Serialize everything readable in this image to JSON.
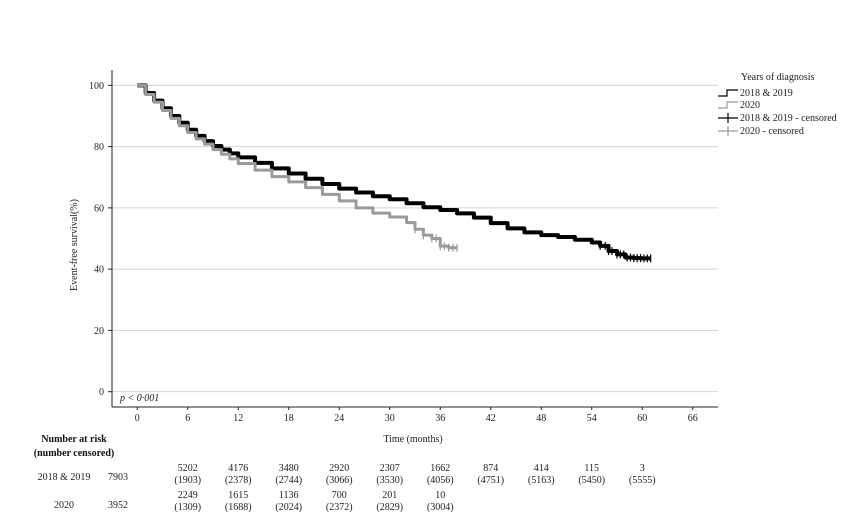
{
  "chart_data": {
    "type": "line",
    "title": "",
    "xlabel": "Time (months)",
    "ylabel": "Event-free survival(%)",
    "xlim": [
      -3,
      69
    ],
    "ylim": [
      -5,
      105
    ],
    "x_ticks": [
      0,
      6,
      12,
      18,
      24,
      30,
      36,
      42,
      48,
      54,
      60,
      66
    ],
    "y_ticks": [
      0,
      20,
      40,
      60,
      80,
      100
    ],
    "grid": "horizontal",
    "legend_placement": "top-right",
    "legend_title": "Years of diagnosis",
    "legend_entries": [
      "2018 & 2019",
      "2020",
      "2018 & 2019 - censored",
      "2020 - censored"
    ],
    "annotation": "p < 0·001",
    "colors": {
      "s2018": "#000000",
      "s2020": "#9a9a9a",
      "grid": "#d4d4d4",
      "axis": "#222222"
    },
    "series": [
      {
        "name": "2018 & 2019",
        "x": [
          0,
          1,
          2,
          3,
          4,
          5,
          6,
          7,
          8,
          9,
          10,
          11,
          12,
          14,
          16,
          18,
          20,
          22,
          24,
          26,
          28,
          30,
          32,
          34,
          36,
          38,
          40,
          42,
          44,
          46,
          48,
          50,
          52,
          54,
          55,
          56,
          57,
          58,
          59,
          60,
          61
        ],
        "y": [
          100,
          97.5,
          95,
          92.5,
          90,
          87.8,
          85.5,
          83.5,
          81.8,
          80.2,
          79,
          77.8,
          76.5,
          74.7,
          72.9,
          71.2,
          69.5,
          67.8,
          66.3,
          65,
          63.8,
          62.8,
          61.5,
          60.2,
          59.3,
          58.2,
          56.8,
          55,
          53.3,
          52,
          51.1,
          50.5,
          49.6,
          48.7,
          47.6,
          45.9,
          44.8,
          43.8,
          43.6,
          43.5,
          43.5
        ],
        "censored_x": [
          55,
          55.6,
          56,
          56.4,
          57,
          57.4,
          57.8,
          58.2,
          58.6,
          59,
          59.4,
          59.8,
          60.2,
          60.6,
          61
        ]
      },
      {
        "name": "2020",
        "x": [
          0,
          1,
          2,
          3,
          4,
          5,
          6,
          7,
          8,
          9,
          10,
          11,
          12,
          14,
          16,
          18,
          20,
          22,
          24,
          26,
          28,
          30,
          32,
          33,
          34,
          35,
          36,
          37,
          38
        ],
        "y": [
          100,
          97,
          94.5,
          91.8,
          89.2,
          86.8,
          84.6,
          82.5,
          80.8,
          79,
          77.5,
          76,
          74.5,
          72.3,
          70.2,
          68.5,
          66.6,
          64.4,
          62.3,
          60,
          58.3,
          57,
          55.2,
          53,
          51.1,
          50,
          47.5,
          47,
          47
        ],
        "censored_x": [
          33,
          34,
          35,
          35.5,
          36,
          36.5,
          37,
          37.5,
          38
        ]
      }
    ],
    "risk_table": {
      "heading_line1": "Number at risk",
      "heading_line2": "(number censored)",
      "rows": [
        {
          "label": "2018 & 2019",
          "at_risk": [
            "7903",
            "5202",
            "4176",
            "3480",
            "2920",
            "2307",
            "1662",
            "874",
            "414",
            "115",
            "3"
          ],
          "censored": [
            "",
            "(1903)",
            "(2378)",
            "(2744)",
            "(3066)",
            "(3530)",
            "(4056)",
            "(4751)",
            "(5163)",
            "(5450)",
            "(5555)"
          ]
        },
        {
          "label": "2020",
          "at_risk": [
            "3952",
            "2249",
            "1615",
            "1136",
            "700",
            "201",
            "10"
          ],
          "censored": [
            "",
            "(1309)",
            "(1688)",
            "(2024)",
            "(2372)",
            "(2829)",
            "(3004)"
          ]
        }
      ]
    }
  }
}
